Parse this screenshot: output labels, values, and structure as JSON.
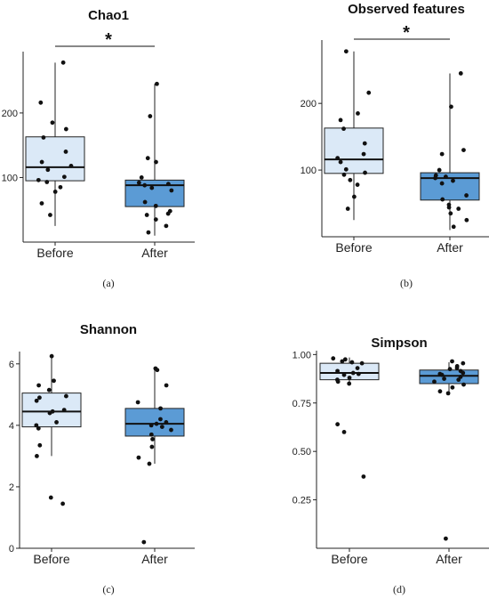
{
  "chart_data": [
    {
      "type": "box",
      "panel_label": "(a)",
      "title": "Chao1",
      "ylim": [
        0,
        295
      ],
      "yticks": [
        100,
        200
      ],
      "categories": [
        "Before",
        "After"
      ],
      "colors": [
        "#dbe9f7",
        "#5b9bd5"
      ],
      "significance": "*",
      "series": [
        {
          "name": "Before",
          "q1": 95,
          "median": 116,
          "q3": 163,
          "whisker_low": 25,
          "whisker_high": 278,
          "points": [
            278,
            216,
            185,
            175,
            162,
            140,
            124,
            118,
            112,
            101,
            96,
            93,
            85,
            78,
            60,
            42
          ]
        },
        {
          "name": "After",
          "q1": 55,
          "median": 88,
          "q3": 96,
          "whisker_low": 10,
          "whisker_high": 245,
          "points": [
            245,
            195,
            130,
            124,
            100,
            92,
            90,
            88,
            84,
            80,
            62,
            56,
            48,
            44,
            42,
            35,
            25,
            15
          ]
        }
      ]
    },
    {
      "type": "box",
      "panel_label": "(b)",
      "title": "Observed features",
      "ylim": [
        0,
        295
      ],
      "yticks": [
        100,
        200
      ],
      "categories": [
        "Before",
        "After"
      ],
      "colors": [
        "#dbe9f7",
        "#5b9bd5"
      ],
      "significance": "*",
      "series": [
        {
          "name": "Before",
          "q1": 95,
          "median": 116,
          "q3": 163,
          "whisker_low": 25,
          "whisker_high": 278,
          "points": [
            278,
            216,
            185,
            175,
            162,
            140,
            124,
            118,
            112,
            101,
            96,
            93,
            85,
            78,
            60,
            42
          ]
        },
        {
          "name": "After",
          "q1": 55,
          "median": 88,
          "q3": 96,
          "whisker_low": 10,
          "whisker_high": 245,
          "points": [
            245,
            195,
            130,
            124,
            100,
            92,
            90,
            88,
            84,
            80,
            62,
            56,
            48,
            44,
            42,
            35,
            25,
            15
          ]
        }
      ]
    },
    {
      "type": "box",
      "panel_label": "(c)",
      "title": "Shannon",
      "ylim": [
        0,
        6.4
      ],
      "yticks": [
        0,
        2,
        4,
        6
      ],
      "categories": [
        "Before",
        "After"
      ],
      "colors": [
        "#dbe9f7",
        "#5b9bd5"
      ],
      "significance": "",
      "series": [
        {
          "name": "Before",
          "q1": 3.95,
          "median": 4.45,
          "q3": 5.05,
          "whisker_low": 3.0,
          "whisker_high": 6.25,
          "points": [
            6.25,
            5.45,
            5.3,
            5.15,
            4.95,
            4.9,
            4.8,
            4.5,
            4.45,
            4.4,
            4.1,
            4.0,
            3.9,
            3.35,
            3.0,
            1.65,
            1.45
          ]
        },
        {
          "name": "After",
          "q1": 3.65,
          "median": 4.05,
          "q3": 4.55,
          "whisker_low": 2.75,
          "whisker_high": 5.85,
          "points": [
            5.85,
            5.8,
            5.3,
            4.75,
            4.55,
            4.2,
            4.1,
            4.05,
            4.0,
            3.95,
            3.85,
            3.7,
            3.55,
            3.3,
            2.95,
            2.75,
            0.2
          ]
        }
      ]
    },
    {
      "type": "box",
      "panel_label": "(d)",
      "title": "Simpson",
      "ylim": [
        0.0,
        1.02
      ],
      "yticks": [
        0.25,
        0.5,
        0.75,
        1.0
      ],
      "ytick_labels": [
        "0.25",
        "0.50",
        "0.75",
        "1.00"
      ],
      "categories": [
        "Before",
        "After"
      ],
      "colors": [
        "#dbe9f7",
        "#5b9bd5"
      ],
      "significance": "",
      "series": [
        {
          "name": "Before",
          "q1": 0.87,
          "median": 0.905,
          "q3": 0.955,
          "whisker_low": 0.84,
          "whisker_high": 0.985,
          "points": [
            0.98,
            0.975,
            0.965,
            0.96,
            0.955,
            0.93,
            0.915,
            0.905,
            0.9,
            0.895,
            0.88,
            0.87,
            0.86,
            0.85,
            0.64,
            0.6,
            0.37
          ]
        },
        {
          "name": "After",
          "q1": 0.85,
          "median": 0.89,
          "q3": 0.92,
          "whisker_low": 0.8,
          "whisker_high": 0.96,
          "points": [
            0.965,
            0.955,
            0.94,
            0.93,
            0.925,
            0.915,
            0.905,
            0.9,
            0.895,
            0.885,
            0.875,
            0.87,
            0.86,
            0.845,
            0.83,
            0.81,
            0.8,
            0.05
          ]
        }
      ]
    }
  ]
}
